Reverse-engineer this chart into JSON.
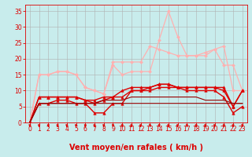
{
  "title": "",
  "xlabel": "Vent moyen/en rafales ( km/h )",
  "ylabel": "",
  "bg_color": "#c8ecec",
  "grid_color": "#b0b0b0",
  "xlim": [
    -0.5,
    23.5
  ],
  "ylim": [
    0,
    37
  ],
  "yticks": [
    0,
    5,
    10,
    15,
    20,
    25,
    30,
    35
  ],
  "xticks": [
    0,
    1,
    2,
    3,
    4,
    5,
    6,
    7,
    8,
    9,
    10,
    11,
    12,
    13,
    14,
    15,
    16,
    17,
    18,
    19,
    20,
    21,
    22,
    23
  ],
  "series": [
    {
      "x": [
        0,
        1,
        2,
        3,
        4,
        5,
        6,
        7,
        8,
        9,
        10,
        11,
        12,
        13,
        14,
        15,
        16,
        17,
        18,
        19,
        20,
        21,
        22,
        23
      ],
      "y": [
        0,
        15,
        15,
        16,
        16,
        15,
        11,
        10,
        9,
        19,
        19,
        19,
        19,
        24,
        23,
        22,
        21,
        21,
        21,
        22,
        23,
        18,
        18,
        10
      ],
      "color": "#ffb0b0",
      "lw": 0.9,
      "marker": "D",
      "ms": 2.0
    },
    {
      "x": [
        0,
        1,
        2,
        3,
        4,
        5,
        6,
        7,
        8,
        9,
        10,
        11,
        12,
        13,
        14,
        15,
        16,
        17,
        18,
        19,
        20,
        21,
        22,
        23
      ],
      "y": [
        0,
        15,
        15,
        16,
        16,
        15,
        11,
        10,
        9,
        18,
        15,
        16,
        16,
        16,
        26,
        35,
        27,
        21,
        21,
        21,
        23,
        24,
        10,
        10
      ],
      "color": "#ffb0b0",
      "lw": 0.9,
      "marker": "D",
      "ms": 2.0
    },
    {
      "x": [
        0,
        1,
        2,
        3,
        4,
        5,
        6,
        7,
        8,
        9,
        10,
        11,
        12,
        13,
        14,
        15,
        16,
        17,
        18,
        19,
        20,
        21,
        22,
        23
      ],
      "y": [
        0,
        6,
        6,
        7,
        7,
        6,
        6,
        3,
        3,
        6,
        6,
        10,
        10,
        10,
        11,
        11,
        11,
        10,
        10,
        10,
        10,
        8,
        3,
        5
      ],
      "color": "#dd0000",
      "lw": 1.0,
      "marker": "^",
      "ms": 2.5
    },
    {
      "x": [
        0,
        1,
        2,
        3,
        4,
        5,
        6,
        7,
        8,
        9,
        10,
        11,
        12,
        13,
        14,
        15,
        16,
        17,
        18,
        19,
        20,
        21,
        22,
        23
      ],
      "y": [
        0,
        8,
        8,
        8,
        8,
        8,
        7,
        6,
        7,
        8,
        10,
        11,
        11,
        11,
        12,
        12,
        11,
        11,
        11,
        11,
        11,
        10,
        5,
        10
      ],
      "color": "#dd0000",
      "lw": 1.0,
      "marker": "^",
      "ms": 2.5
    },
    {
      "x": [
        0,
        1,
        2,
        3,
        4,
        5,
        6,
        7,
        8,
        9,
        10,
        11,
        12,
        13,
        14,
        15,
        16,
        17,
        18,
        19,
        20,
        21,
        22,
        23
      ],
      "y": [
        0,
        8,
        8,
        8,
        8,
        8,
        7,
        7,
        8,
        8,
        8,
        10,
        10,
        11,
        12,
        12,
        11,
        11,
        11,
        11,
        11,
        11,
        5,
        10
      ],
      "color": "#dd0000",
      "lw": 1.0,
      "marker": "^",
      "ms": 2.5
    },
    {
      "x": [
        0,
        1,
        2,
        3,
        4,
        5,
        6,
        7,
        8,
        9,
        10,
        11,
        12,
        13,
        14,
        15,
        16,
        17,
        18,
        19,
        20,
        21,
        22,
        23
      ],
      "y": [
        0,
        6,
        6,
        6,
        6,
        6,
        6,
        6,
        6,
        6,
        6,
        6,
        6,
        6,
        6,
        6,
        6,
        6,
        6,
        6,
        6,
        6,
        6,
        6
      ],
      "color": "#990000",
      "lw": 0.8,
      "marker": null,
      "ms": 0
    },
    {
      "x": [
        0,
        1,
        2,
        3,
        4,
        5,
        6,
        7,
        8,
        9,
        10,
        11,
        12,
        13,
        14,
        15,
        16,
        17,
        18,
        19,
        20,
        21,
        22,
        23
      ],
      "y": [
        0,
        6,
        6,
        6,
        6,
        6,
        6,
        6,
        7,
        7,
        7,
        8,
        8,
        8,
        8,
        8,
        8,
        8,
        8,
        7,
        7,
        7,
        6,
        6
      ],
      "color": "#990000",
      "lw": 0.8,
      "marker": null,
      "ms": 0
    }
  ],
  "arrow_color": "#dd0000",
  "xlabel_color": "#dd0000",
  "xlabel_fontsize": 7.0,
  "tick_fontsize": 5.5,
  "tick_color": "#dd0000"
}
